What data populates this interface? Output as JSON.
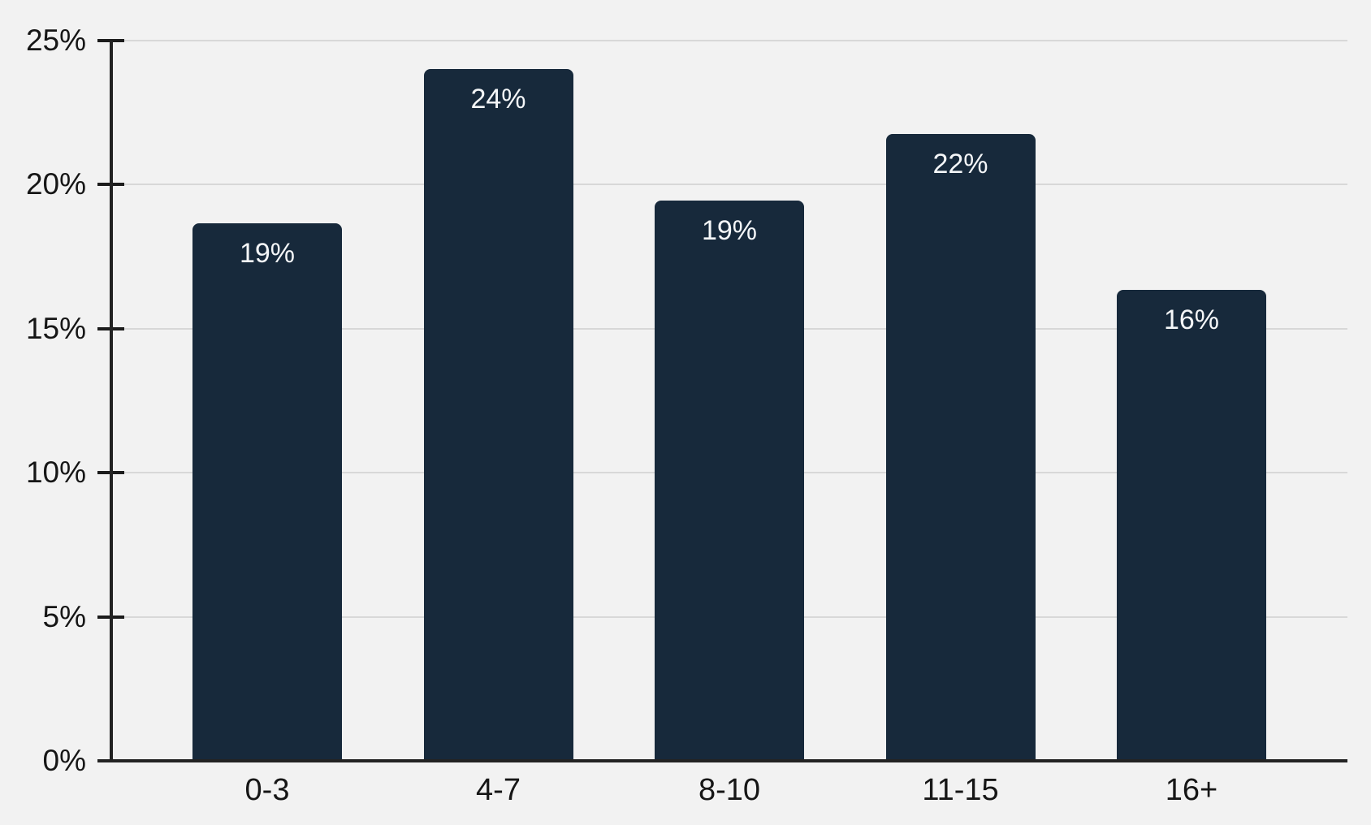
{
  "chart_data": {
    "type": "bar",
    "title": "",
    "xlabel": "",
    "ylabel": "",
    "categories": [
      "0-3",
      "4-7",
      "8-10",
      "11-15",
      "16+"
    ],
    "values": [
      18.6,
      23.95,
      19.4,
      21.7,
      16.3
    ],
    "bar_labels": [
      "19%",
      "24%",
      "19%",
      "22%",
      "16%"
    ],
    "ylim": [
      0,
      25
    ],
    "ytick_step": 5,
    "ytick_labels": [
      "0%",
      "5%",
      "10%",
      "15%",
      "20%",
      "25%"
    ],
    "grid": true,
    "legend": false,
    "colors": {
      "background": "#F2F2F2",
      "bar": "#17293B",
      "gridline": "#D8D8D8",
      "axis": "#232323",
      "tick_label": "#161616",
      "bar_label": "#F4F6F8"
    }
  }
}
